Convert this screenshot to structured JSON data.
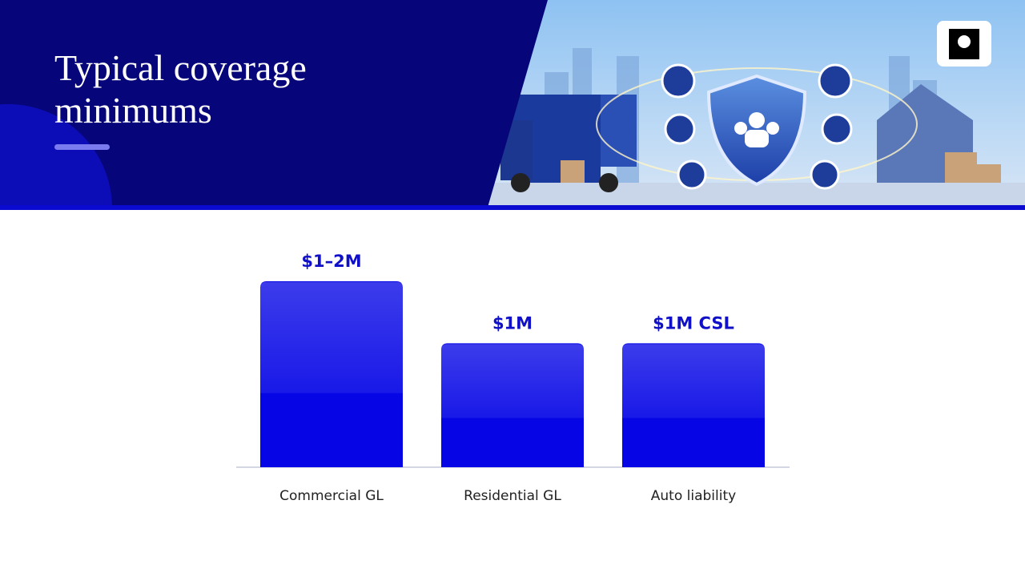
{
  "title": "Typical coverage minimums",
  "chart_data": {
    "type": "bar",
    "categories": [
      "Commercial GL",
      "Residential GL",
      "Auto liability"
    ],
    "values": [
      1.5,
      1,
      1
    ],
    "value_labels": [
      "$1–2M",
      "$1M",
      "$1M CSL"
    ],
    "color": "#0505e6"
  }
}
